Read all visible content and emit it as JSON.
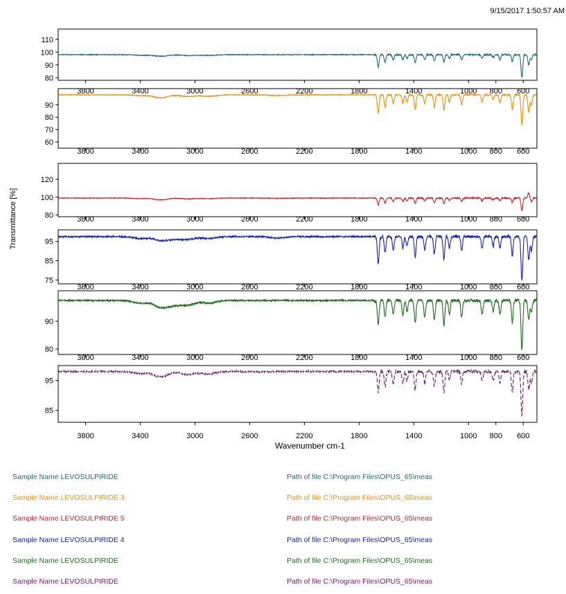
{
  "timestamp": "9/15/2017  1:50:57 AM",
  "chart_data": {
    "type": "line",
    "xlabel": "Wavenumber cm-1",
    "ylabel": "Transmittance [%]",
    "x_ticks": [
      "3800",
      "3400",
      "3000",
      "2600",
      "2200",
      "1800",
      "1400",
      "1000",
      "800",
      "600"
    ],
    "x_tick_values": [
      3800,
      3400,
      3000,
      2600,
      2200,
      1800,
      1400,
      1000,
      800,
      600
    ],
    "xlim": [
      4000,
      500
    ],
    "x_reversed": true,
    "panels": [
      {
        "color": "#1e6b6b",
        "dashed": false,
        "ylim": [
          78,
          118
        ],
        "y_ticks": [
          "110",
          "100",
          "90",
          "80"
        ],
        "y_tick_values": [
          110,
          100,
          90,
          80
        ],
        "baseline": 98,
        "jitter": 0.3,
        "bumps": [
          [
            3400,
            -0.5
          ],
          [
            3250,
            -1.2
          ],
          [
            3050,
            -0.7
          ],
          [
            2900,
            -0.6
          ]
        ],
        "bands": [
          [
            1660,
            -10
          ],
          [
            1610,
            -6
          ],
          [
            1550,
            -4
          ],
          [
            1480,
            -4
          ],
          [
            1450,
            -3
          ],
          [
            1390,
            -6
          ],
          [
            1320,
            -4
          ],
          [
            1250,
            -5
          ],
          [
            1180,
            -6
          ],
          [
            1140,
            -3
          ],
          [
            1050,
            -4
          ],
          [
            900,
            -3
          ],
          [
            820,
            -2
          ],
          [
            770,
            -4
          ],
          [
            680,
            -5
          ],
          [
            610,
            -18
          ],
          [
            560,
            -8
          ],
          [
            540,
            -4
          ]
        ]
      },
      {
        "color": "#e8900a",
        "dashed": false,
        "ylim": [
          55,
          103
        ],
        "y_ticks": [
          "90",
          "80",
          "70",
          "60"
        ],
        "y_tick_values": [
          90,
          80,
          70,
          60
        ],
        "baseline": 98,
        "jitter": 0.3,
        "bumps": [
          [
            3400,
            -0.6
          ],
          [
            3250,
            -2.5
          ],
          [
            3050,
            -1.4
          ],
          [
            2900,
            -1.2
          ],
          [
            2400,
            -0.6
          ]
        ],
        "bands": [
          [
            1660,
            -15
          ],
          [
            1610,
            -10
          ],
          [
            1550,
            -7
          ],
          [
            1480,
            -7
          ],
          [
            1450,
            -6
          ],
          [
            1390,
            -12
          ],
          [
            1320,
            -7
          ],
          [
            1250,
            -10
          ],
          [
            1180,
            -12
          ],
          [
            1140,
            -6
          ],
          [
            1050,
            -8
          ],
          [
            900,
            -6
          ],
          [
            820,
            -4
          ],
          [
            770,
            -7
          ],
          [
            680,
            -12
          ],
          [
            610,
            -24
          ],
          [
            560,
            -14
          ],
          [
            540,
            -8
          ]
        ]
      },
      {
        "color": "#c0272d",
        "dashed": false,
        "ylim": [
          78,
          138
        ],
        "y_ticks": [
          "120",
          "100",
          "80"
        ],
        "y_tick_values": [
          120,
          100,
          80
        ],
        "baseline": 99,
        "jitter": 0.4,
        "bumps": [
          [
            3400,
            -0.6
          ],
          [
            3250,
            -2
          ],
          [
            3050,
            -1
          ],
          [
            2900,
            -0.8
          ],
          [
            2400,
            -0.4
          ]
        ],
        "bands": [
          [
            1660,
            -8
          ],
          [
            1610,
            -6
          ],
          [
            1550,
            -4
          ],
          [
            1480,
            -4
          ],
          [
            1450,
            -3
          ],
          [
            1390,
            -6
          ],
          [
            1320,
            -3
          ],
          [
            1250,
            -5
          ],
          [
            1180,
            -6
          ],
          [
            1140,
            -3
          ],
          [
            1050,
            -4
          ],
          [
            900,
            -3
          ],
          [
            820,
            -2
          ],
          [
            770,
            -3
          ],
          [
            680,
            -5
          ],
          [
            610,
            -14
          ],
          [
            560,
            6
          ],
          [
            540,
            -4
          ]
        ]
      },
      {
        "color": "#1a22a8",
        "dashed": false,
        "ylim": [
          73,
          101
        ],
        "y_ticks": [
          "95",
          "85",
          "75"
        ],
        "y_tick_values": [
          95,
          85,
          75
        ],
        "baseline": 97.5,
        "jitter": 0.4,
        "bumps": [
          [
            3400,
            -1
          ],
          [
            3250,
            -2
          ],
          [
            3150,
            -1.2
          ],
          [
            3050,
            -1.4
          ],
          [
            2900,
            -1
          ],
          [
            2400,
            -0.8
          ]
        ],
        "bands": [
          [
            1660,
            -14
          ],
          [
            1610,
            -8
          ],
          [
            1550,
            -7
          ],
          [
            1480,
            -6
          ],
          [
            1450,
            -5
          ],
          [
            1390,
            -11
          ],
          [
            1320,
            -7
          ],
          [
            1250,
            -9
          ],
          [
            1180,
            -12
          ],
          [
            1140,
            -6
          ],
          [
            1050,
            -7
          ],
          [
            900,
            -6
          ],
          [
            820,
            -5
          ],
          [
            770,
            -6
          ],
          [
            680,
            -10
          ],
          [
            610,
            -23
          ],
          [
            560,
            -12
          ],
          [
            540,
            -7
          ]
        ]
      },
      {
        "color": "#1e6b1e",
        "dashed": false,
        "ylim": [
          78,
          101
        ],
        "y_ticks": [
          "90",
          "80"
        ],
        "y_tick_values": [
          90,
          80
        ],
        "baseline": 97.5,
        "jitter": 0.3,
        "bumps": [
          [
            3400,
            -1
          ],
          [
            3250,
            -2.5
          ],
          [
            3150,
            -1.5
          ],
          [
            3050,
            -1.5
          ],
          [
            2900,
            -1
          ]
        ],
        "bands": [
          [
            1660,
            -9
          ],
          [
            1610,
            -6
          ],
          [
            1550,
            -5
          ],
          [
            1480,
            -5
          ],
          [
            1450,
            -4
          ],
          [
            1390,
            -8
          ],
          [
            1320,
            -6
          ],
          [
            1250,
            -7
          ],
          [
            1180,
            -9
          ],
          [
            1140,
            -5
          ],
          [
            1050,
            -6
          ],
          [
            900,
            -5
          ],
          [
            820,
            -4
          ],
          [
            770,
            -5
          ],
          [
            680,
            -8
          ],
          [
            610,
            -18
          ],
          [
            560,
            -7
          ],
          [
            540,
            -4
          ]
        ]
      },
      {
        "color": "#6a1a6a",
        "dashed": true,
        "ylim": [
          81,
          100
        ],
        "y_ticks": [
          "95",
          "85"
        ],
        "y_tick_values": [
          95,
          85
        ],
        "baseline": 98,
        "jitter": 0.3,
        "bumps": [
          [
            3400,
            -0.7
          ],
          [
            3250,
            -1.8
          ],
          [
            3050,
            -1
          ],
          [
            2900,
            -0.8
          ]
        ],
        "bands": [
          [
            1660,
            -7
          ],
          [
            1610,
            -5
          ],
          [
            1550,
            -4
          ],
          [
            1480,
            -4
          ],
          [
            1450,
            -3
          ],
          [
            1390,
            -6
          ],
          [
            1320,
            -4
          ],
          [
            1250,
            -5
          ],
          [
            1180,
            -7
          ],
          [
            1140,
            -3
          ],
          [
            1050,
            -4
          ],
          [
            900,
            -3
          ],
          [
            820,
            -3
          ],
          [
            770,
            -4
          ],
          [
            680,
            -7
          ],
          [
            610,
            -15
          ],
          [
            560,
            -6
          ],
          [
            540,
            -4
          ]
        ]
      }
    ]
  },
  "legend": [
    {
      "sample": "Sample Name LEVOSULPIRIDE",
      "path": "Path of file C:\\Program Files\\OPUS_65\\meas",
      "color": "#1e6b6b"
    },
    {
      "sample": "Sample Name LEVOSULPIRIDE 3",
      "path": "Path of file C:\\Program Files\\OPUS_65\\meas",
      "color": "#e8900a"
    },
    {
      "sample": "Sample Name LEVOSULPIRIDE 5",
      "path": "Path of file C:\\Program Files\\OPUS_65\\meas",
      "color": "#c0272d"
    },
    {
      "sample": "Sample Name LEVOSULPIRIDE 4",
      "path": "Path of file C:\\Program Files\\OPUS_65\\meas",
      "color": "#1a22a8"
    },
    {
      "sample": "Sample Name LEVOSULPIRIDE",
      "path": "Path of file C:\\Program Files\\OPUS_65\\meas",
      "color": "#1e6b1e"
    },
    {
      "sample": "Sample Name LEVOSULPIRIDE",
      "path": "Path of file C:\\Program Files\\OPUS_65\\meas",
      "color": "#6a1a6a"
    }
  ]
}
